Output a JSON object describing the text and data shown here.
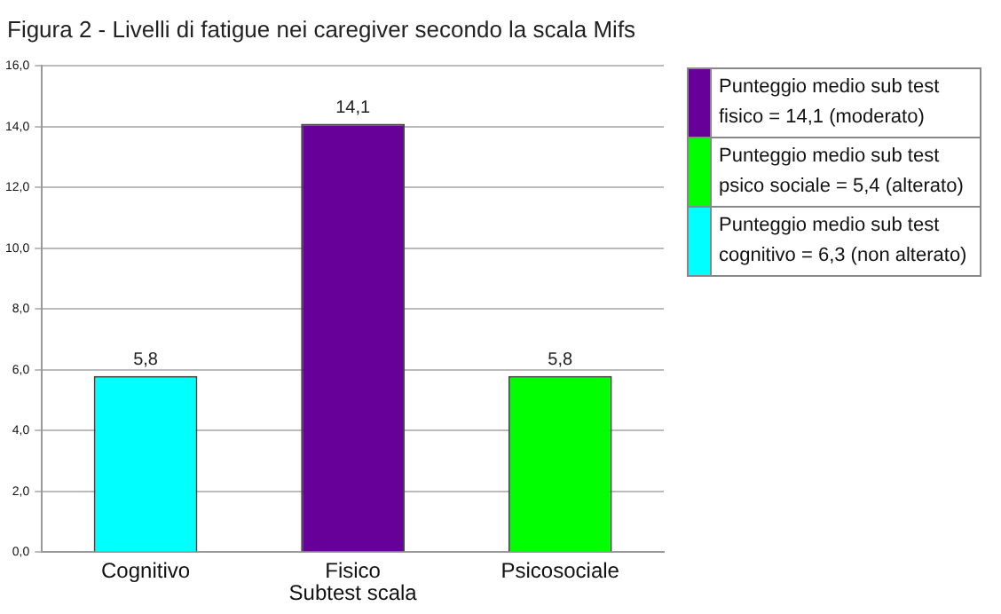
{
  "chart_data": {
    "type": "bar",
    "title": "Figura 2 - Livelli di fatigue nei caregiver secondo la scala Mifs",
    "xlabel": "Subtest scala",
    "categories": [
      "Cognitivo",
      "Fisico",
      "Psicosociale"
    ],
    "series": [
      {
        "name": "Punteggio medio sub test fisico = 14,1 (moderato)",
        "color": "#660099",
        "values": [
          null,
          14.1,
          null
        ],
        "value_labels": [
          null,
          "14,1",
          null
        ]
      },
      {
        "name": "Punteggio medio sub test psico sociale = 5,4 (alterato)",
        "color": "#00ff00",
        "values": [
          null,
          null,
          5.8
        ],
        "value_labels": [
          null,
          null,
          "5,8"
        ]
      },
      {
        "name": "Punteggio medio sub test cognitivo = 6,3 (non alterato)",
        "color": "#00ffff",
        "values": [
          5.8,
          null,
          null
        ],
        "value_labels": [
          "5,8",
          null,
          null
        ]
      }
    ],
    "ylim": [
      0,
      16
    ],
    "yticks": [
      {
        "value": 0,
        "label": "0,0"
      },
      {
        "value": 2,
        "label": "2,0"
      },
      {
        "value": 4,
        "label": "4,0"
      },
      {
        "value": 6,
        "label": "6,0"
      },
      {
        "value": 8,
        "label": "8,0"
      },
      {
        "value": 10,
        "label": "10,0"
      },
      {
        "value": 12,
        "label": "12,0"
      },
      {
        "value": 14,
        "label": "14,0"
      },
      {
        "value": 16,
        "label": "16,0"
      }
    ],
    "grid": "y",
    "legend": "right"
  }
}
